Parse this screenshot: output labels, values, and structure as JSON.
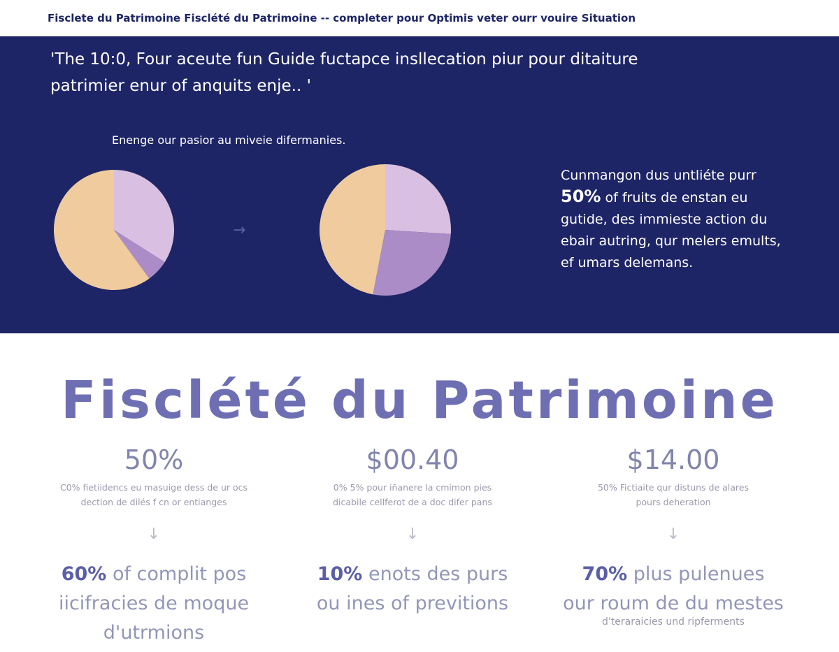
{
  "header": {
    "title": "Fisclete du Patrimoine Fisclété du Patrimoine -- completer pour Optimis veter ourr vouire Situation"
  },
  "hero": {
    "quote": [
      "'The 10:0, Four aceute fun Guide fuctapce insllecation piur pour ditaiture",
      "patrimier enur of anquits enje.. '"
    ],
    "caption": "Enenge our pasior au miveie difermanies.",
    "pies": [
      {
        "slices": [
          {
            "value": 34,
            "color": "#d9c0e2"
          },
          {
            "value": 6,
            "color": "#ab8cc6"
          },
          {
            "value": 60,
            "color": "#f0cb9e"
          }
        ]
      },
      {
        "slices": [
          {
            "value": 26,
            "color": "#d9c0e2"
          },
          {
            "value": 27,
            "color": "#ab8cc6"
          },
          {
            "value": 47,
            "color": "#f0cb9e"
          }
        ]
      }
    ],
    "callout": {
      "lead": "Cunmangon dus untliéte purr",
      "highlight": "50%",
      "rest": "of fruits de enstan eu",
      "more": [
        "gutide, des immieste action du",
        "ebair autring, qur melers emults,",
        "ef umars delemans."
      ]
    }
  },
  "section": {
    "title": "Fisclété du Patrimoine",
    "columns": [
      {
        "stat": "50%",
        "description": [
          "C0% fietiidencs eu masuige dess de ur ocs",
          "dection de dilés f cn or entianges"
        ],
        "highlight": "60%",
        "text": [
          "of complit pos",
          "iicifracies de moque",
          "d'utrmions"
        ]
      },
      {
        "stat": "$00.40",
        "description": [
          "0% 5% pour iñanere la cmimon pies",
          "dicabile cellferot de a doc difer pans"
        ],
        "highlight": "10%",
        "text": [
          "enots des purs",
          "ou ines of previtions"
        ]
      },
      {
        "stat": "$14.00",
        "description": [
          "50% Fictiaite qur distuns de alares",
          "pours deheration"
        ],
        "highlight": "70%",
        "text": [
          "plus pulenues",
          "our roum de du mestes"
        ],
        "note": "d'teraraicies und ripferments"
      }
    ]
  }
}
